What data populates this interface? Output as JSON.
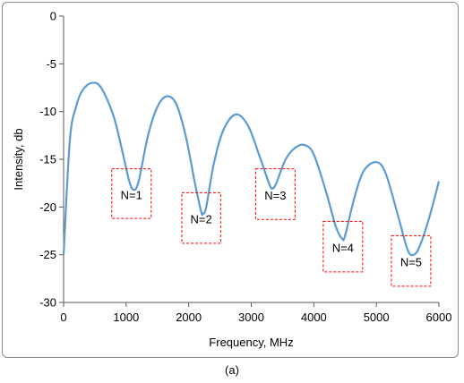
{
  "caption": "(a)",
  "chart_data": {
    "type": "line",
    "xlabel": "Frequency, MHz",
    "ylabel": "Intensity, db",
    "xlim": [
      0,
      6000
    ],
    "ylim": [
      -30,
      0
    ],
    "x_ticks": [
      0,
      1000,
      2000,
      3000,
      4000,
      5000,
      6000
    ],
    "y_ticks": [
      0,
      -5,
      -10,
      -15,
      -20,
      -25,
      -30
    ],
    "grid": false,
    "legend": "none",
    "series": [
      {
        "color": "#5b9bd5",
        "x": [
          0,
          100,
          200,
          300,
          450,
          600,
          800,
          950,
          1050,
          1120,
          1200,
          1350,
          1500,
          1650,
          1800,
          1950,
          2100,
          2200,
          2230,
          2280,
          2400,
          2550,
          2750,
          2950,
          3150,
          3300,
          3350,
          3400,
          3550,
          3700,
          3850,
          4000,
          4200,
          4350,
          4450,
          4500,
          4650,
          4800,
          5000,
          5150,
          5350,
          5500,
          5600,
          5700,
          5850,
          6000
        ],
        "y": [
          -25,
          -13,
          -9.5,
          -7.8,
          -7.0,
          -7.5,
          -10.5,
          -14.5,
          -17.3,
          -18.2,
          -17.3,
          -12.5,
          -9.5,
          -8.4,
          -9.2,
          -12.5,
          -17.5,
          -20.5,
          -20.7,
          -20.0,
          -15.5,
          -12.0,
          -10.3,
          -11.5,
          -15.0,
          -17.8,
          -18.0,
          -17.5,
          -15.0,
          -13.8,
          -13.5,
          -14.5,
          -18.5,
          -22.0,
          -23.3,
          -23.0,
          -19.0,
          -16.2,
          -15.3,
          -16.5,
          -21.0,
          -24.5,
          -25.0,
          -24.0,
          -21.0,
          -17.3
        ]
      }
    ],
    "annotations": [
      {
        "label": "N=1",
        "x0": 770,
        "x1": 1400,
        "y0": -16,
        "y1": -21.2
      },
      {
        "label": "N=2",
        "x0": 1890,
        "x1": 2510,
        "y0": -18.5,
        "y1": -23.8
      },
      {
        "label": "N=3",
        "x0": 3070,
        "x1": 3700,
        "y0": -16,
        "y1": -21.3
      },
      {
        "label": "N=4",
        "x0": 4150,
        "x1": 4780,
        "y0": -21.5,
        "y1": -26.8
      },
      {
        "label": "N=5",
        "x0": 5240,
        "x1": 5870,
        "y0": -23.0,
        "y1": -28.3
      }
    ]
  }
}
